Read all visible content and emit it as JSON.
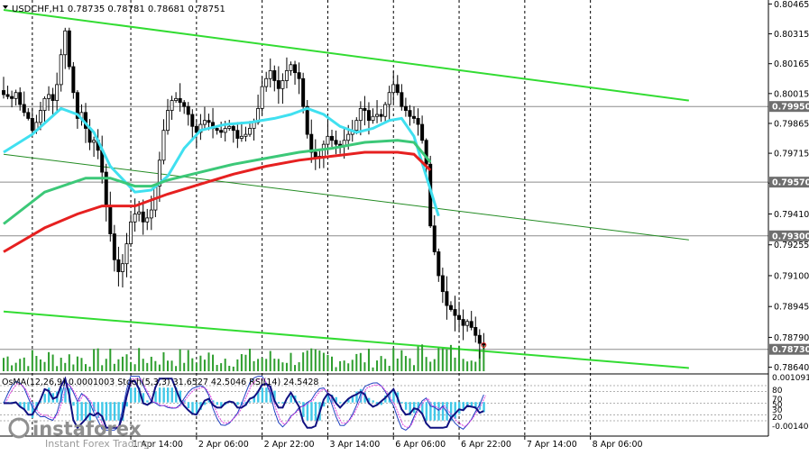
{
  "chart_data": {
    "type": "candlestick",
    "symbol_line": "USDCHF,H1  0.78735 0.78781 0.78681 0.78751",
    "oscillator_line": "OsMA(12,26,9) 0.0001003  Stoch(5,3,3) 31.6527 42.5046  RSI(14) 24.5428",
    "watermark": "instaforex",
    "watermark_sub": "Instant Forex Trading",
    "price_ticks": [
      "0.80465",
      "0.80315",
      "0.80165",
      "0.80015",
      "0.79865",
      "0.79715",
      "0.79565",
      "0.79410",
      "0.79255",
      "0.79100",
      "0.78945",
      "0.78790",
      "0.78640"
    ],
    "price_range": [
      0.7862,
      0.80485
    ],
    "level_tags": [
      {
        "label": "0.79950",
        "value": 0.7995,
        "color": "#6e6e6e"
      },
      {
        "label": "0.79570",
        "value": 0.7957,
        "color": "#6e6e6e"
      },
      {
        "label": "0.79300",
        "value": 0.793,
        "color": "#6e6e6e"
      },
      {
        "label": "0.78730",
        "value": 0.7873,
        "color": "#6e6e6e"
      }
    ],
    "osc_ticks": [
      "0.001091",
      "80",
      "70",
      "50",
      "30",
      "20",
      "-0.001401"
    ],
    "x_labels": [
      "1 Apr 14:00",
      "2 Apr 06:00",
      "2 Apr 22:00",
      "3 Apr 14:00",
      "6 Apr 06:00",
      "6 Apr 22:00",
      "7 Apr 14:00",
      "8 Apr 06:00"
    ],
    "x_label_bar_index": [
      31,
      47,
      63,
      79,
      95,
      111,
      127,
      143
    ],
    "close": [
      0.8001,
      0.8,
      0.7999,
      0.8002,
      0.7996,
      0.7992,
      0.7989,
      0.7983,
      0.7987,
      0.7993,
      0.7999,
      0.8001,
      0.7998,
      0.8006,
      0.8021,
      0.8033,
      0.8015,
      0.8002,
      0.7989,
      0.7992,
      0.7984,
      0.7977,
      0.7978,
      0.7973,
      0.7962,
      0.7945,
      0.7931,
      0.7918,
      0.7912,
      0.7916,
      0.7926,
      0.7937,
      0.7941,
      0.7942,
      0.7937,
      0.7939,
      0.7943,
      0.7955,
      0.7968,
      0.7983,
      0.7993,
      0.7998,
      0.7999,
      0.7997,
      0.7995,
      0.7991,
      0.7985,
      0.7982,
      0.7986,
      0.7988,
      0.7987,
      0.7984,
      0.7983,
      0.7982,
      0.7984,
      0.7985,
      0.7983,
      0.7979,
      0.798,
      0.7981,
      0.7984,
      0.7987,
      0.7994,
      0.8005,
      0.8009,
      0.8013,
      0.8008,
      0.8004,
      0.8008,
      0.8013,
      0.8016,
      0.8012,
      0.8009,
      0.7995,
      0.7981,
      0.7972,
      0.7969,
      0.797,
      0.7976,
      0.798,
      0.7978,
      0.7976,
      0.7975,
      0.7978,
      0.7981,
      0.7983,
      0.7988,
      0.7994,
      0.7993,
      0.7988,
      0.799,
      0.7991,
      0.799,
      0.7996,
      0.8002,
      0.8006,
      0.8002,
      0.7995,
      0.7993,
      0.799,
      0.7989,
      0.7986,
      0.7978,
      0.7966,
      0.7935,
      0.7922,
      0.791,
      0.7902,
      0.7895,
      0.7893,
      0.789,
      0.7888,
      0.7885,
      0.7887,
      0.7884,
      0.788,
      0.7876,
      0.78751
    ],
    "ma": [
      {
        "color": "#40e0f0",
        "values": [
          [
            0,
            0.7972
          ],
          [
            7,
            0.7981
          ],
          [
            14,
            0.7994
          ],
          [
            18,
            0.7991
          ],
          [
            22,
            0.7982
          ],
          [
            26,
            0.7965
          ],
          [
            32,
            0.7952
          ],
          [
            36,
            0.7953
          ],
          [
            40,
            0.796
          ],
          [
            44,
            0.7974
          ],
          [
            48,
            0.7983
          ],
          [
            54,
            0.7986
          ],
          [
            60,
            0.7987
          ],
          [
            66,
            0.7989
          ],
          [
            70,
            0.7991
          ],
          [
            74,
            0.7994
          ],
          [
            78,
            0.7991
          ],
          [
            82,
            0.7985
          ],
          [
            86,
            0.7982
          ],
          [
            90,
            0.7984
          ],
          [
            94,
            0.7988
          ],
          [
            97,
            0.7989
          ],
          [
            100,
            0.798
          ],
          [
            103,
            0.796
          ],
          [
            106,
            0.794
          ]
        ]
      },
      {
        "color": "#3cc878",
        "values": [
          [
            0,
            0.7936
          ],
          [
            10,
            0.7952
          ],
          [
            20,
            0.7959
          ],
          [
            26,
            0.7959
          ],
          [
            32,
            0.7955
          ],
          [
            36,
            0.7955
          ],
          [
            40,
            0.7958
          ],
          [
            48,
            0.7962
          ],
          [
            56,
            0.7966
          ],
          [
            64,
            0.7969
          ],
          [
            72,
            0.7972
          ],
          [
            80,
            0.7974
          ],
          [
            88,
            0.7977
          ],
          [
            96,
            0.7978
          ],
          [
            100,
            0.7977
          ],
          [
            104,
            0.7967
          ]
        ]
      },
      {
        "color": "#e62020",
        "values": [
          [
            0,
            0.7922
          ],
          [
            10,
            0.7934
          ],
          [
            18,
            0.7941
          ],
          [
            24,
            0.7945
          ],
          [
            32,
            0.7945
          ],
          [
            40,
            0.7951
          ],
          [
            48,
            0.7956
          ],
          [
            56,
            0.7961
          ],
          [
            64,
            0.7965
          ],
          [
            72,
            0.7968
          ],
          [
            80,
            0.797
          ],
          [
            88,
            0.7972
          ],
          [
            96,
            0.7972
          ],
          [
            100,
            0.7971
          ],
          [
            104,
            0.7963
          ]
        ]
      }
    ],
    "channel_lines": [
      {
        "color": "#32dc32",
        "from": [
          0,
          0.80435
        ],
        "to": [
          167,
          0.7998
        ]
      },
      {
        "color": "#32dc32",
        "from": [
          0,
          0.7892
        ],
        "to": [
          167,
          0.78636
        ]
      },
      {
        "color": "#228b22",
        "from": [
          0,
          0.7971
        ],
        "to": [
          167,
          0.7928
        ]
      }
    ]
  }
}
